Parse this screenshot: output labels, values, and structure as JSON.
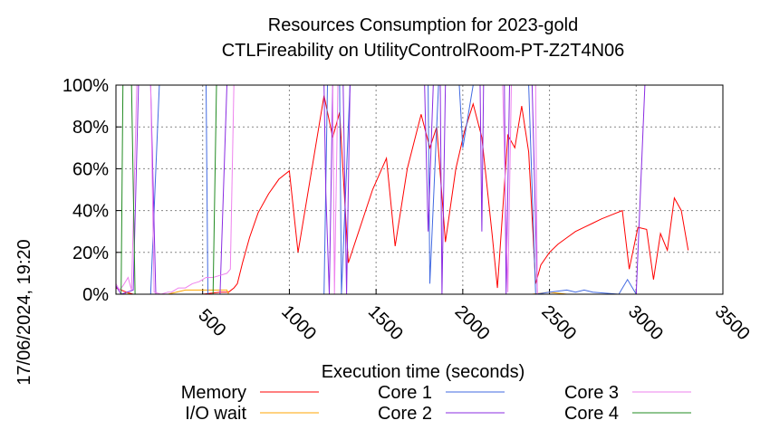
{
  "chart_data": {
    "type": "line",
    "title": "Resources Consumption for 2023-gold",
    "subtitle": "CTLFireability on UtilityControlRoom-PT-Z2T4N06",
    "xlabel": "Execution time (seconds)",
    "ylabel": "",
    "side_label": "17/06/2024, 19:20",
    "xlim": [
      0,
      3500
    ],
    "ylim": [
      0,
      100
    ],
    "x_ticks": [
      "500",
      "1000",
      "1500",
      "2000",
      "2500",
      "3000",
      "3500"
    ],
    "y_ticks": [
      "0%",
      "20%",
      "40%",
      "60%",
      "80%",
      "100%"
    ],
    "grid": true,
    "legend_position": "bottom",
    "series": [
      {
        "name": "Memory",
        "color": "#ff0000",
        "points": [
          [
            0,
            3
          ],
          [
            60,
            1
          ],
          [
            100,
            0
          ],
          [
            150,
            0
          ],
          [
            200,
            0
          ],
          [
            300,
            0
          ],
          [
            400,
            0
          ],
          [
            500,
            0
          ],
          [
            600,
            1
          ],
          [
            650,
            1
          ],
          [
            680,
            3
          ],
          [
            700,
            5
          ],
          [
            730,
            15
          ],
          [
            770,
            27
          ],
          [
            820,
            39
          ],
          [
            880,
            48
          ],
          [
            940,
            55
          ],
          [
            1000,
            59
          ],
          [
            1050,
            20
          ],
          [
            1120,
            55
          ],
          [
            1200,
            95
          ],
          [
            1250,
            75
          ],
          [
            1290,
            87
          ],
          [
            1340,
            15
          ],
          [
            1400,
            30
          ],
          [
            1480,
            50
          ],
          [
            1560,
            65
          ],
          [
            1610,
            23
          ],
          [
            1680,
            60
          ],
          [
            1760,
            86
          ],
          [
            1810,
            70
          ],
          [
            1850,
            80
          ],
          [
            1900,
            25
          ],
          [
            1960,
            60
          ],
          [
            2010,
            78
          ],
          [
            2060,
            91
          ],
          [
            2110,
            75
          ],
          [
            2170,
            28
          ],
          [
            2200,
            3
          ],
          [
            2260,
            76
          ],
          [
            2300,
            70
          ],
          [
            2340,
            90
          ],
          [
            2380,
            68
          ],
          [
            2420,
            5
          ],
          [
            2450,
            14
          ],
          [
            2500,
            20
          ],
          [
            2550,
            24
          ],
          [
            2600,
            27
          ],
          [
            2650,
            30
          ],
          [
            2700,
            32
          ],
          [
            2750,
            34
          ],
          [
            2800,
            36
          ],
          [
            2860,
            38
          ],
          [
            2920,
            40
          ],
          [
            2960,
            12
          ],
          [
            3010,
            32
          ],
          [
            3060,
            31
          ],
          [
            3100,
            7
          ],
          [
            3140,
            29
          ],
          [
            3180,
            21
          ],
          [
            3220,
            46
          ],
          [
            3260,
            40
          ],
          [
            3300,
            21
          ]
        ]
      },
      {
        "name": "I/O wait",
        "color": "#ffa500",
        "points": [
          [
            0,
            0
          ],
          [
            50,
            0
          ],
          [
            60,
            1
          ],
          [
            80,
            0
          ],
          [
            150,
            0
          ],
          [
            300,
            0
          ],
          [
            400,
            2
          ],
          [
            500,
            2
          ],
          [
            600,
            2
          ],
          [
            640,
            2
          ],
          [
            650,
            0
          ],
          [
            700,
            0
          ],
          [
            1000,
            0
          ],
          [
            2000,
            0
          ],
          [
            2400,
            0
          ],
          [
            2500,
            1
          ],
          [
            2600,
            0
          ],
          [
            3000,
            0
          ],
          [
            3300,
            0
          ]
        ]
      },
      {
        "name": "Core 1",
        "color": "#4169e1",
        "points": [
          [
            0,
            0
          ],
          [
            60,
            0
          ],
          [
            100,
            0
          ],
          [
            200,
            0
          ],
          [
            250,
            100
          ],
          [
            520,
            100
          ],
          [
            530,
            0
          ],
          [
            600,
            0
          ],
          [
            700,
            0
          ],
          [
            1200,
            0
          ],
          [
            1220,
            100
          ],
          [
            1290,
            100
          ],
          [
            1300,
            0
          ],
          [
            1350,
            100
          ],
          [
            1800,
            100
          ],
          [
            1810,
            5
          ],
          [
            1860,
            100
          ],
          [
            1980,
            100
          ],
          [
            2000,
            70
          ],
          [
            2060,
            100
          ],
          [
            2380,
            100
          ],
          [
            2420,
            0
          ],
          [
            2500,
            1
          ],
          [
            2600,
            2
          ],
          [
            2650,
            1
          ],
          [
            2700,
            2
          ],
          [
            2750,
            1
          ],
          [
            2900,
            0
          ],
          [
            2950,
            7
          ],
          [
            3000,
            0
          ],
          [
            3300,
            0
          ]
        ]
      },
      {
        "name": "Core 2",
        "color": "#8a2be2",
        "points": [
          [
            0,
            4
          ],
          [
            30,
            0
          ],
          [
            100,
            2
          ],
          [
            130,
            100
          ],
          [
            200,
            100
          ],
          [
            230,
            0
          ],
          [
            600,
            0
          ],
          [
            640,
            100
          ],
          [
            700,
            100
          ],
          [
            1200,
            100
          ],
          [
            1210,
            50
          ],
          [
            1230,
            0
          ],
          [
            1250,
            100
          ],
          [
            1310,
            100
          ],
          [
            1330,
            0
          ],
          [
            1350,
            100
          ],
          [
            1780,
            100
          ],
          [
            1800,
            30
          ],
          [
            1830,
            100
          ],
          [
            1870,
            100
          ],
          [
            1880,
            0
          ],
          [
            1900,
            100
          ],
          [
            2100,
            100
          ],
          [
            2110,
            30
          ],
          [
            2120,
            100
          ],
          [
            2240,
            100
          ],
          [
            2250,
            0
          ],
          [
            2270,
            100
          ],
          [
            2400,
            100
          ],
          [
            2430,
            0
          ],
          [
            2900,
            0
          ],
          [
            3000,
            0
          ],
          [
            3050,
            100
          ],
          [
            3300,
            100
          ]
        ]
      },
      {
        "name": "Core 3",
        "color": "#ee82ee",
        "points": [
          [
            0,
            5
          ],
          [
            20,
            2
          ],
          [
            40,
            4
          ],
          [
            70,
            8
          ],
          [
            90,
            2
          ],
          [
            120,
            100
          ],
          [
            200,
            100
          ],
          [
            220,
            1
          ],
          [
            260,
            0
          ],
          [
            300,
            1
          ],
          [
            320,
            1
          ],
          [
            360,
            3
          ],
          [
            400,
            3
          ],
          [
            440,
            5
          ],
          [
            480,
            6
          ],
          [
            520,
            8
          ],
          [
            560,
            8
          ],
          [
            600,
            9
          ],
          [
            640,
            10
          ],
          [
            660,
            12
          ],
          [
            680,
            100
          ],
          [
            1250,
            100
          ],
          [
            1260,
            0
          ],
          [
            1280,
            100
          ],
          [
            2200,
            100
          ],
          [
            2230,
            100
          ],
          [
            2260,
            1
          ],
          [
            2280,
            100
          ],
          [
            2420,
            100
          ],
          [
            2430,
            0
          ],
          [
            3300,
            0
          ]
        ]
      },
      {
        "name": "Core 4",
        "color": "#228b22",
        "points": [
          [
            0,
            0
          ],
          [
            30,
            0
          ],
          [
            40,
            100
          ],
          [
            90,
            100
          ],
          [
            110,
            0
          ],
          [
            200,
            0
          ],
          [
            500,
            0
          ],
          [
            560,
            0
          ],
          [
            580,
            100
          ],
          [
            3300,
            100
          ]
        ]
      }
    ]
  }
}
